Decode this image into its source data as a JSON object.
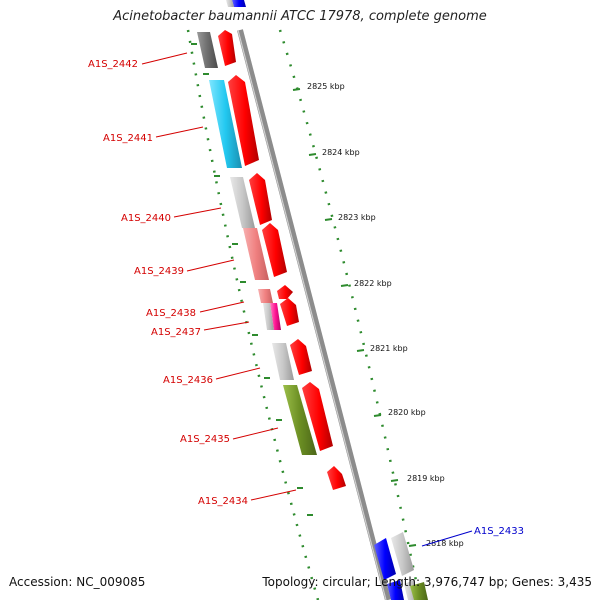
{
  "title": "Acinetobacter baumannii ATCC 17978, complete genome",
  "footer": {
    "accession": "Accession: NC_009085",
    "stats": "Topology: circular; Length: 3,976,747 bp; Genes: 3,435"
  },
  "colors": {
    "background": "#ffffff",
    "backbone": "#8c8c8c",
    "cds_forward": "#ff0000",
    "label_red": "#d40000",
    "label_blue": "#0000cc",
    "tick_green": "#2e8b2e",
    "feature_cyan": "#22c8f0",
    "feature_gray": "#c8c8c8",
    "feature_darkgray": "#6e6e6e",
    "feature_salmon": "#f08080",
    "feature_magenta": "#ff1493",
    "feature_olive": "#6b8e23",
    "feature_blue": "#0000ff"
  },
  "kbp_ticks": [
    "2825 kbp",
    "2824 kbp",
    "2823 kbp",
    "2822 kbp",
    "2821 kbp",
    "2820 kbp",
    "2819 kbp",
    "2818 kbp"
  ],
  "genes": [
    {
      "label": "A1S_2442",
      "color": "label_red"
    },
    {
      "label": "A1S_2441",
      "color": "label_red"
    },
    {
      "label": "A1S_2440",
      "color": "label_red"
    },
    {
      "label": "A1S_2439",
      "color": "label_red"
    },
    {
      "label": "A1S_2438",
      "color": "label_red"
    },
    {
      "label": "A1S_2437",
      "color": "label_red"
    },
    {
      "label": "A1S_2436",
      "color": "label_red"
    },
    {
      "label": "A1S_2435",
      "color": "label_red"
    },
    {
      "label": "A1S_2434",
      "color": "label_red"
    },
    {
      "label": "A1S_2433",
      "color": "label_blue"
    }
  ]
}
